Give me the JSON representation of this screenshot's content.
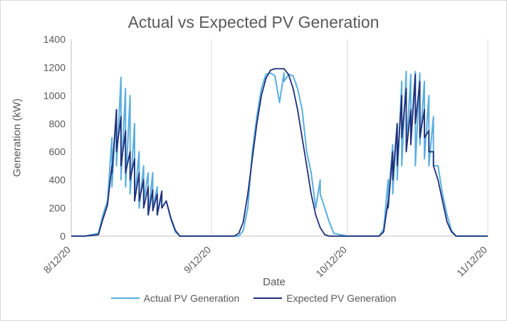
{
  "chart_data": {
    "type": "line",
    "title": "Actual vs Expected PV Generation",
    "xlabel": "Date",
    "ylabel": "Generation (kW)",
    "ylim": [
      0,
      1400
    ],
    "yticks": [
      0,
      200,
      400,
      600,
      800,
      1000,
      1200,
      1400
    ],
    "xlim": [
      "8/12/20",
      "11/12/20"
    ],
    "xticks": [
      "8/12/20",
      "9/12/20",
      "10/12/20",
      "11/12/20"
    ],
    "grid": {
      "x": true,
      "y": false
    },
    "legend_position": "bottom",
    "series": [
      {
        "name": "Actual PV Generation",
        "color": "#5aaee0",
        "x": [
          "8/12/20",
          "8/15/20",
          "8/18/20",
          "8/19/20",
          "8/20/20",
          "8/21/20",
          "8/21/20",
          "8/22/20",
          "8/22/20",
          "8/23/20",
          "8/23/20",
          "8/24/20",
          "8/24/20",
          "8/25/20",
          "8/25/20",
          "8/26/20",
          "8/26/20",
          "8/27/20",
          "8/27/20",
          "8/28/20",
          "8/28/20",
          "8/29/20",
          "8/29/20",
          "8/30/20",
          "8/30/20",
          "8/31/20",
          "8/31/20",
          "9/1/20",
          "9/1/20",
          "9/2/20",
          "9/3/20",
          "9/4/20",
          "9/5/20",
          "9/6/20",
          "9/12/20",
          "9/18/20",
          "9/19/20",
          "9/20/20",
          "9/21/20",
          "9/22/20",
          "9/23/20",
          "9/24/20",
          "9/25/20",
          "9/26/20",
          "9/27/20",
          "9/28/20",
          "9/28/20",
          "9/29/20",
          "9/30/20",
          "10/1/20",
          "10/2/20",
          "10/3/20",
          "10/4/20",
          "10/5/20",
          "10/6/20",
          "10/6/20",
          "10/7/20",
          "10/8/20",
          "10/9/20",
          "10/12/20",
          "10/19/20",
          "10/20/20",
          "10/21/20",
          "10/21/20",
          "10/22/20",
          "10/22/20",
          "10/23/20",
          "10/23/20",
          "10/24/20",
          "10/24/20",
          "10/25/20",
          "10/25/20",
          "10/26/20",
          "10/26/20",
          "10/27/20",
          "10/27/20",
          "10/28/20",
          "10/28/20",
          "10/29/20",
          "10/29/20",
          "10/30/20",
          "10/30/20",
          "10/31/20",
          "10/31/20",
          "11/1/20",
          "11/2/20",
          "11/3/20",
          "11/4/20",
          "11/5/20",
          "11/6/20",
          "11/12/20"
        ],
        "y": [
          0,
          0,
          20,
          150,
          250,
          700,
          350,
          900,
          500,
          1130,
          400,
          1050,
          350,
          1000,
          300,
          800,
          250,
          600,
          200,
          500,
          250,
          450,
          150,
          450,
          200,
          350,
          150,
          300,
          200,
          250,
          120,
          30,
          0,
          0,
          0,
          0,
          40,
          200,
          600,
          850,
          1050,
          1150,
          1160,
          1140,
          950,
          1160,
          1100,
          1150,
          1140,
          1050,
          900,
          600,
          450,
          200,
          400,
          300,
          200,
          100,
          20,
          0,
          0,
          50,
          400,
          250,
          650,
          300,
          800,
          400,
          1100,
          500,
          1170,
          600,
          1150,
          700,
          1170,
          500,
          1160,
          650,
          1100,
          550,
          1000,
          500,
          850,
          500,
          500,
          300,
          150,
          40,
          0,
          0,
          0
        ]
      },
      {
        "name": "Expected PV Generation",
        "color": "#1f2f7a",
        "x": [
          "8/12/20",
          "8/15/20",
          "8/18/20",
          "8/19/20",
          "8/20/20",
          "8/21/20",
          "8/21/20",
          "8/22/20",
          "8/22/20",
          "8/23/20",
          "8/23/20",
          "8/24/20",
          "8/24/20",
          "8/25/20",
          "8/25/20",
          "8/26/20",
          "8/26/20",
          "8/27/20",
          "8/27/20",
          "8/28/20",
          "8/28/20",
          "8/29/20",
          "8/29/20",
          "8/30/20",
          "8/30/20",
          "8/31/20",
          "8/31/20",
          "9/1/20",
          "9/1/20",
          "9/2/20",
          "9/3/20",
          "9/4/20",
          "9/5/20",
          "9/6/20",
          "9/12/20",
          "9/17/20",
          "9/18/20",
          "9/19/20",
          "9/20/20",
          "9/21/20",
          "9/22/20",
          "9/23/20",
          "9/24/20",
          "9/25/20",
          "9/26/20",
          "9/27/20",
          "9/28/20",
          "9/29/20",
          "9/30/20",
          "10/1/20",
          "10/2/20",
          "10/3/20",
          "10/4/20",
          "10/5/20",
          "10/6/20",
          "10/7/20",
          "10/8/20",
          "10/9/20",
          "10/10/20",
          "10/12/20",
          "10/19/20",
          "10/20/20",
          "10/21/20",
          "10/21/20",
          "10/22/20",
          "10/22/20",
          "10/23/20",
          "10/23/20",
          "10/24/20",
          "10/24/20",
          "10/25/20",
          "10/25/20",
          "10/26/20",
          "10/26/20",
          "10/27/20",
          "10/27/20",
          "10/28/20",
          "10/28/20",
          "10/29/20",
          "10/29/20",
          "10/30/20",
          "10/30/20",
          "10/31/20",
          "10/31/20",
          "11/1/20",
          "11/2/20",
          "11/3/20",
          "11/4/20",
          "11/5/20",
          "11/6/20",
          "11/12/20"
        ],
        "y": [
          0,
          0,
          10,
          120,
          220,
          500,
          450,
          900,
          600,
          850,
          500,
          750,
          450,
          600,
          400,
          550,
          250,
          450,
          250,
          400,
          200,
          350,
          150,
          330,
          180,
          300,
          150,
          320,
          200,
          250,
          130,
          40,
          0,
          0,
          0,
          0,
          20,
          100,
          300,
          550,
          800,
          1000,
          1120,
          1180,
          1190,
          1190,
          1190,
          1150,
          1050,
          900,
          700,
          500,
          300,
          150,
          60,
          10,
          0,
          0,
          0,
          0,
          0,
          30,
          250,
          200,
          600,
          400,
          800,
          500,
          1000,
          700,
          1050,
          600,
          900,
          650,
          1150,
          800,
          1100,
          700,
          900,
          700,
          750,
          600,
          600,
          500,
          400,
          250,
          100,
          30,
          0,
          0,
          0
        ]
      }
    ]
  }
}
